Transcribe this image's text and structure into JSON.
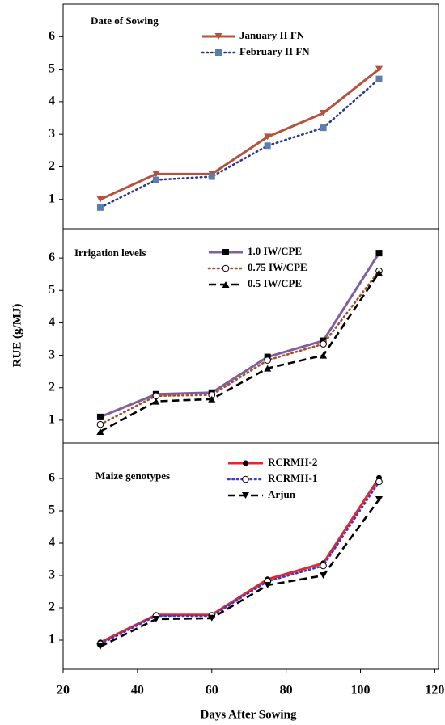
{
  "chart_data": [
    {
      "type": "line",
      "title": "Date of Sowing",
      "x": [
        30,
        45,
        60,
        75,
        90,
        105
      ],
      "xlim": [
        20,
        121
      ],
      "ylim": [
        0.1,
        7
      ],
      "yticks": [
        1,
        2,
        3,
        4,
        5,
        6
      ],
      "series": [
        {
          "name": "January II FN",
          "color": "#b5523b",
          "line_style": "solid",
          "marker": "triangle-down",
          "marker_color": "#b5523b",
          "values": [
            1.0,
            1.78,
            1.78,
            2.92,
            3.65,
            5.0
          ]
        },
        {
          "name": "February II FN",
          "color": "#2e3a87",
          "line_style": "dotted",
          "marker": "square",
          "marker_color": "#5a7fae",
          "values": [
            0.75,
            1.6,
            1.7,
            2.65,
            3.2,
            4.7
          ]
        }
      ]
    },
    {
      "type": "line",
      "title": "Irrigation levels",
      "y_label": "RUE (g/MJ)",
      "x": [
        30,
        45,
        60,
        75,
        90,
        105
      ],
      "xlim": [
        20,
        121
      ],
      "ylim": [
        0.3,
        6.9
      ],
      "yticks": [
        1,
        2,
        3,
        4,
        5,
        6
      ],
      "series": [
        {
          "name": "1.0 IW/CPE",
          "color": "#7f5fa0",
          "line_style": "solid",
          "marker": "square",
          "marker_color": "#000000",
          "values": [
            1.1,
            1.8,
            1.85,
            2.95,
            3.45,
            6.15
          ]
        },
        {
          "name": "0.75 IW/CPE",
          "color": "#a0522d",
          "line_style": "dotted",
          "marker": "circle-open",
          "marker_color": "#000000",
          "values": [
            0.87,
            1.75,
            1.78,
            2.85,
            3.35,
            5.6
          ]
        },
        {
          "name": "0.5 IW/CPE",
          "color": "#000000",
          "line_style": "dashed",
          "marker": "triangle-up",
          "marker_color": "#000000",
          "values": [
            0.65,
            1.58,
            1.65,
            2.6,
            3.0,
            5.55
          ]
        }
      ]
    },
    {
      "type": "line",
      "title": "Maize genotypes",
      "x_label": "Days After Sowing",
      "x": [
        30,
        45,
        60,
        75,
        90,
        105
      ],
      "xlim": [
        20,
        121
      ],
      "xticks": [
        20,
        40,
        60,
        80,
        100,
        120
      ],
      "ylim": [
        0.1,
        7.1
      ],
      "yticks": [
        1,
        2,
        3,
        4,
        5,
        6
      ],
      "series": [
        {
          "name": "RCRMH-2",
          "color": "#e8262a",
          "line_style": "solid",
          "marker": "circle",
          "marker_color": "#000000",
          "values": [
            0.93,
            1.78,
            1.78,
            2.88,
            3.38,
            6.02
          ]
        },
        {
          "name": "RCRMH-1",
          "color": "#3c3cc8",
          "line_style": "dotted",
          "marker": "circle-open",
          "marker_color": "#000000",
          "values": [
            0.88,
            1.75,
            1.75,
            2.82,
            3.3,
            5.9
          ]
        },
        {
          "name": "Arjun",
          "color": "#000000",
          "line_style": "dashed",
          "marker": "triangle-down",
          "marker_color": "#000000",
          "values": [
            0.8,
            1.65,
            1.68,
            2.7,
            3.0,
            5.35
          ]
        }
      ]
    }
  ]
}
